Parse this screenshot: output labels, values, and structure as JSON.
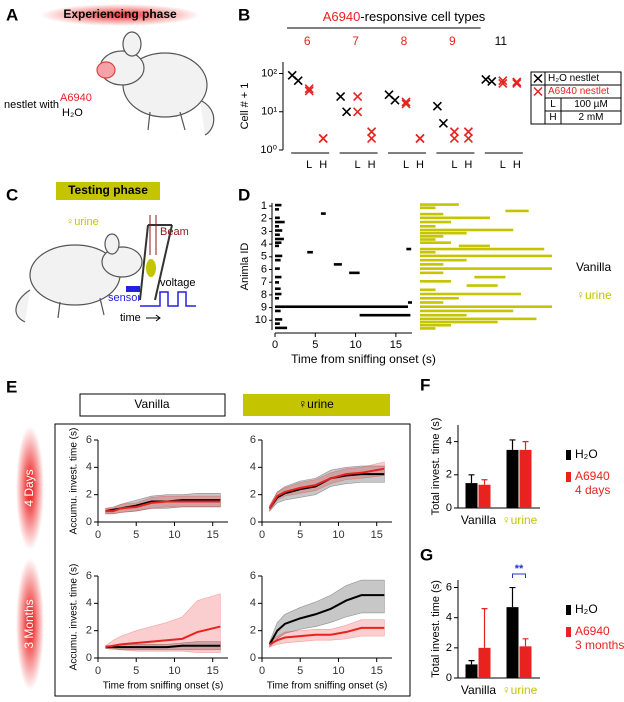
{
  "panels": {
    "A": {
      "label": "A",
      "phase": "Experiencing phase",
      "nestlet": "nestlet with",
      "a6940": "A6940",
      "h2o": "H₂O"
    },
    "C": {
      "label": "C",
      "phase": "Testing phase",
      "urine": "♀urine",
      "beam": "Beam",
      "voltage": "voltage",
      "sensor": "sensor",
      "time": "time"
    },
    "E": {
      "label": "E",
      "columns": [
        "Vanilla",
        "♀urine"
      ],
      "rows": [
        "4 Days",
        "3 Months"
      ]
    }
  },
  "chart_data": [
    {
      "type": "scatter",
      "panel": "B",
      "title_highlight": "A6940",
      "title": "-responsive cell types",
      "categories": [
        "6",
        "7",
        "8",
        "9",
        "11"
      ],
      "category_colors": [
        "#e8221f",
        "#e8221f",
        "#e8221f",
        "#e8221f",
        "#000000"
      ],
      "ylabel": "Cell # + 1",
      "log_y": true,
      "ylim": [
        1,
        200
      ],
      "yticks": [
        {
          "value": 1,
          "label": "10⁰"
        },
        {
          "value": 10,
          "label": "10¹"
        },
        {
          "value": 100,
          "label": "10²"
        }
      ],
      "legend_a6940": "A6940 nestlet",
      "series": [
        {
          "name": "H₂O nestlet",
          "color": "#000000",
          "values": [
            [
              90,
              65
            ],
            [
              25,
              10
            ],
            [
              28,
              20
            ],
            [
              14,
              5
            ],
            [
              70,
              62
            ]
          ]
        },
        {
          "name": "L",
          "concentration": "100 µM",
          "color": "#e8221f",
          "values": [
            [
              40,
              35
            ],
            [
              25,
              10
            ],
            [
              18,
              16
            ],
            [
              3,
              2
            ],
            [
              65,
              55
            ]
          ]
        },
        {
          "name": "H",
          "concentration": "2 mM",
          "color": "#e8221f",
          "values": [
            [
              2,
              2
            ],
            [
              3,
              2
            ],
            [
              2,
              2
            ],
            [
              3,
              2
            ],
            [
              60,
              55
            ]
          ]
        }
      ]
    },
    {
      "type": "raster",
      "panel": "D",
      "ylabel": "Animla ID",
      "xlabel": "Time from sniffing onset (s)",
      "categories": [
        1,
        2,
        3,
        4,
        5,
        6,
        7,
        8,
        9,
        10
      ],
      "xlim": [
        0,
        17
      ],
      "xticks": [
        0,
        5,
        10,
        15
      ],
      "series": [
        {
          "name": "Vanilla",
          "color": "#000000",
          "bouts": [
            [
              [
                0,
                0.8
              ],
              [
                0,
                0.5
              ],
              [
                5.7,
                6.3
              ]
            ],
            [
              [
                0,
                0.6
              ],
              [
                0,
                1.2
              ],
              [
                0,
                0.5
              ]
            ],
            [
              [
                0,
                0.9
              ],
              [
                0,
                0.6
              ],
              [
                0,
                1.1
              ]
            ],
            [
              [
                0,
                0.8
              ],
              [
                0,
                0.5
              ],
              [
                16.3,
                16.9
              ],
              [
                4,
                4.7
              ]
            ],
            [
              [
                0,
                0.9
              ],
              [
                0,
                0.7
              ],
              [
                7.3,
                8.3
              ]
            ],
            [
              [
                0,
                0.6
              ],
              [
                9.2,
                10.5
              ],
              [
                0,
                0.8
              ]
            ],
            [
              [
                0,
                0.5
              ],
              [
                0,
                0.7
              ]
            ],
            [
              [
                0,
                0.8
              ],
              [
                0,
                0.5
              ],
              [
                16.5,
                17
              ]
            ],
            [
              [
                0,
                16.5
              ],
              [
                0,
                0.7
              ],
              [
                10.5,
                16.8
              ]
            ],
            [
              [
                0,
                0.9
              ],
              [
                0,
                0.6
              ],
              [
                0,
                1.5
              ]
            ]
          ]
        },
        {
          "name": "♀urine",
          "color": "#c4c400",
          "bouts": [
            [
              [
                0,
                5
              ],
              [
                0,
                2
              ],
              [
                11,
                14
              ],
              [
                0,
                3
              ]
            ],
            [
              [
                0,
                9
              ],
              [
                0,
                4
              ],
              [
                0,
                2
              ]
            ],
            [
              [
                0,
                12
              ],
              [
                0,
                6
              ],
              [
                0,
                3
              ],
              [
                0,
                2
              ]
            ],
            [
              [
                0,
                4
              ],
              [
                5,
                9
              ],
              [
                0,
                16
              ],
              [
                0,
                2
              ]
            ],
            [
              [
                0,
                17
              ],
              [
                0,
                6
              ],
              [
                0,
                3
              ]
            ],
            [
              [
                0,
                17
              ],
              [
                0,
                3
              ],
              [
                7,
                11
              ]
            ],
            [
              [
                0,
                4
              ],
              [
                6,
                10
              ],
              [
                0,
                2
              ]
            ],
            [
              [
                0,
                13
              ],
              [
                0,
                5
              ],
              [
                0,
                3
              ]
            ],
            [
              [
                0,
                17
              ],
              [
                0,
                12
              ],
              [
                0,
                6
              ]
            ],
            [
              [
                0,
                15
              ],
              [
                0,
                10
              ],
              [
                0,
                4
              ],
              [
                0,
                2
              ]
            ]
          ]
        }
      ]
    },
    {
      "type": "line",
      "ylabel": "Accumu. invest. time (s)",
      "x": [
        1,
        2,
        3,
        5,
        7,
        9,
        11,
        13,
        16
      ],
      "xlim": [
        0,
        17
      ],
      "xticks": [
        0,
        5,
        10,
        15
      ],
      "ylim": [
        0,
        6
      ],
      "yticks": [
        0,
        2,
        4,
        6
      ],
      "series": [
        {
          "color": "#000000",
          "values": [
            0.8,
            0.9,
            1.0,
            1.2,
            1.5,
            1.5,
            1.6,
            1.6,
            1.6
          ],
          "lower": [
            0.6,
            0.6,
            0.7,
            0.8,
            1.0,
            1.0,
            1.1,
            1.1,
            1.1
          ],
          "upper": [
            1.0,
            1.1,
            1.3,
            1.6,
            1.9,
            2.0,
            2.0,
            2.1,
            2.1
          ]
        },
        {
          "color": "#e8221f",
          "values": [
            0.8,
            0.8,
            1.0,
            1.1,
            1.4,
            1.5,
            1.5,
            1.5,
            1.5
          ],
          "lower": [
            0.6,
            0.6,
            0.7,
            0.8,
            1.0,
            1.1,
            1.1,
            1.1,
            1.1
          ],
          "upper": [
            1.0,
            1.0,
            1.3,
            1.4,
            1.8,
            1.9,
            1.9,
            1.9,
            1.9
          ]
        }
      ]
    },
    {
      "type": "line",
      "x": [
        1,
        2,
        3,
        5,
        7,
        9,
        11,
        13,
        16
      ],
      "xlim": [
        0,
        17
      ],
      "xticks": [
        0,
        5,
        10,
        15
      ],
      "ylim": [
        0,
        6
      ],
      "yticks": [
        0,
        2,
        4,
        6
      ],
      "series": [
        {
          "color": "#000000",
          "values": [
            1.0,
            1.8,
            2.1,
            2.4,
            2.6,
            3.2,
            3.4,
            3.5,
            3.5
          ],
          "lower": [
            0.8,
            1.4,
            1.6,
            1.8,
            2.0,
            2.6,
            2.8,
            2.9,
            2.9
          ],
          "upper": [
            1.2,
            2.2,
            2.6,
            3.0,
            3.2,
            3.8,
            4.0,
            4.1,
            4.1
          ]
        },
        {
          "color": "#e8221f",
          "values": [
            1.0,
            1.9,
            2.2,
            2.5,
            2.7,
            3.2,
            3.5,
            3.6,
            3.9
          ],
          "lower": [
            0.8,
            1.6,
            1.9,
            2.1,
            2.3,
            2.8,
            3.1,
            3.2,
            3.4
          ],
          "upper": [
            1.2,
            2.2,
            2.5,
            2.9,
            3.1,
            3.6,
            3.9,
            4.0,
            4.4
          ]
        }
      ]
    },
    {
      "type": "line",
      "ylabel": "Accumu. invest. time (s)",
      "xlabel": "Time from sniffing onset (s)",
      "x": [
        1,
        2,
        3,
        5,
        7,
        9,
        11,
        13,
        16
      ],
      "xlim": [
        0,
        17
      ],
      "xticks": [
        0,
        5,
        10,
        15
      ],
      "ylim": [
        0,
        6
      ],
      "yticks": [
        0,
        2,
        4,
        6
      ],
      "series": [
        {
          "color": "#000000",
          "values": [
            0.8,
            0.8,
            0.8,
            0.8,
            0.8,
            0.8,
            0.9,
            0.9,
            0.9
          ],
          "lower": [
            0.7,
            0.7,
            0.6,
            0.6,
            0.6,
            0.6,
            0.6,
            0.6,
            0.6
          ],
          "upper": [
            0.9,
            0.9,
            1.0,
            1.0,
            1.0,
            1.0,
            1.1,
            1.2,
            1.2
          ]
        },
        {
          "color": "#e8221f",
          "values": [
            0.8,
            0.9,
            1.0,
            1.1,
            1.2,
            1.3,
            1.4,
            1.9,
            2.3
          ],
          "lower": [
            0.7,
            0.6,
            0.6,
            0.5,
            0.5,
            0.5,
            0.5,
            0.4,
            0.4
          ],
          "upper": [
            0.9,
            1.3,
            1.6,
            2.0,
            2.3,
            2.6,
            3.0,
            4.2,
            4.7
          ]
        }
      ]
    },
    {
      "type": "line",
      "xlabel": "Time from sniffing onset (s)",
      "x": [
        1,
        2,
        3,
        5,
        7,
        9,
        11,
        13,
        16
      ],
      "xlim": [
        0,
        17
      ],
      "xticks": [
        0,
        5,
        10,
        15
      ],
      "ylim": [
        0,
        6
      ],
      "yticks": [
        0,
        2,
        4,
        6
      ],
      "series": [
        {
          "color": "#000000",
          "values": [
            1.0,
            2.0,
            2.5,
            2.9,
            3.2,
            3.6,
            4.2,
            4.6,
            4.6
          ],
          "lower": [
            0.8,
            1.4,
            1.8,
            2.1,
            2.3,
            2.6,
            3.0,
            3.3,
            3.3
          ],
          "upper": [
            1.2,
            2.6,
            3.2,
            3.7,
            4.1,
            4.6,
            5.3,
            5.7,
            5.7
          ]
        },
        {
          "color": "#e8221f",
          "values": [
            1.0,
            1.3,
            1.5,
            1.6,
            1.7,
            1.7,
            1.9,
            2.2,
            2.2
          ],
          "lower": [
            0.8,
            1.0,
            1.1,
            1.2,
            1.3,
            1.3,
            1.4,
            1.6,
            1.6
          ],
          "upper": [
            1.2,
            1.6,
            1.9,
            2.0,
            2.1,
            2.1,
            2.4,
            2.8,
            2.8
          ]
        }
      ]
    },
    {
      "type": "bar",
      "panel": "F",
      "ylabel": "Total invest. time (s)",
      "categories": [
        "Vanilla",
        "♀urine"
      ],
      "category_colors": [
        "#000000",
        "#c4c400"
      ],
      "ylim": [
        0,
        5
      ],
      "yticks": [
        0,
        2,
        4
      ],
      "series": [
        {
          "name": "H₂O",
          "color": "#000000",
          "values": [
            1.5,
            3.5
          ],
          "errors": [
            0.5,
            0.6
          ]
        },
        {
          "name": "A6940",
          "note": "4 days",
          "color": "#e8221f",
          "values": [
            1.4,
            3.5
          ],
          "errors": [
            0.3,
            0.5
          ]
        }
      ]
    },
    {
      "type": "bar",
      "panel": "G",
      "ylabel": "Total invest. time (s)",
      "categories": [
        "Vanilla",
        "♀urine"
      ],
      "category_colors": [
        "#000000",
        "#c4c400"
      ],
      "ylim": [
        0,
        6.5
      ],
      "yticks": [
        0,
        2,
        4,
        6
      ],
      "annotation": "**",
      "annotation_color": "#2233cc",
      "series": [
        {
          "name": "H₂O",
          "color": "#000000",
          "values": [
            0.9,
            4.7
          ],
          "errors": [
            0.25,
            1.3
          ]
        },
        {
          "name": "A6940",
          "note": "3 months",
          "color": "#e8221f",
          "values": [
            2.0,
            2.1
          ],
          "errors": [
            2.6,
            0.5
          ]
        }
      ]
    }
  ]
}
